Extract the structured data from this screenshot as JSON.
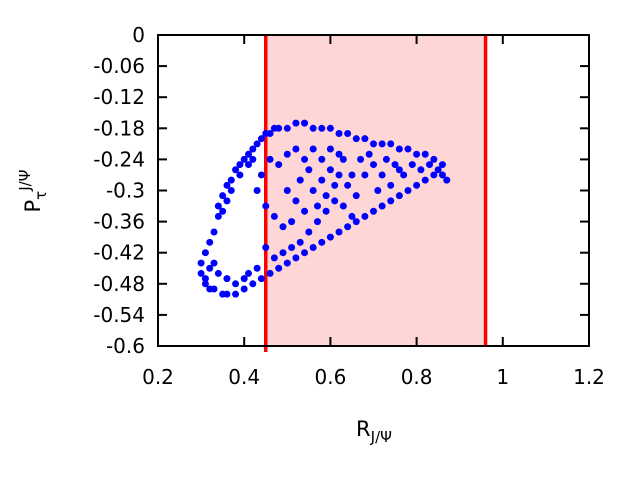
{
  "chart_data": {
    "type": "scatter",
    "title": "",
    "xlabel": {
      "main": "R",
      "sub": "J/Ψ"
    },
    "ylabel": {
      "main": "P",
      "sub": "τ",
      "sup": "J/Ψ"
    },
    "xlim": [
      0.2,
      1.2
    ],
    "ylim": [
      -0.6,
      0
    ],
    "x_ticks": [
      "0.2",
      "0.4",
      "0.6",
      "0.8",
      "1",
      "1.2"
    ],
    "y_ticks": [
      "0",
      "-0.06",
      "-0.12",
      "-0.18",
      "-0.24",
      "-0.3",
      "-0.36",
      "-0.42",
      "-0.48",
      "-0.54",
      "-0.6"
    ],
    "grid": false,
    "band": {
      "x": [
        0.45,
        0.96
      ],
      "fill": "#ffd6d6",
      "edge": "#ff0000"
    },
    "series": [
      {
        "color": "#0000ff",
        "points": [
          [
            0.3,
            -0.44
          ],
          [
            0.3,
            -0.46
          ],
          [
            0.31,
            -0.48
          ],
          [
            0.31,
            -0.42
          ],
          [
            0.32,
            -0.4
          ],
          [
            0.32,
            -0.49
          ],
          [
            0.33,
            -0.38
          ],
          [
            0.33,
            -0.49
          ],
          [
            0.34,
            -0.35
          ],
          [
            0.34,
            -0.33
          ],
          [
            0.35,
            -0.31
          ],
          [
            0.36,
            -0.29
          ],
          [
            0.37,
            -0.28
          ],
          [
            0.38,
            -0.26
          ],
          [
            0.39,
            -0.25
          ],
          [
            0.4,
            -0.24
          ],
          [
            0.41,
            -0.23
          ],
          [
            0.42,
            -0.22
          ],
          [
            0.43,
            -0.21
          ],
          [
            0.44,
            -0.2
          ],
          [
            0.45,
            -0.19
          ],
          [
            0.46,
            -0.19
          ],
          [
            0.47,
            -0.18
          ],
          [
            0.48,
            -0.18
          ],
          [
            0.35,
            -0.5
          ],
          [
            0.36,
            -0.5
          ],
          [
            0.38,
            -0.5
          ],
          [
            0.4,
            -0.49
          ],
          [
            0.42,
            -0.48
          ],
          [
            0.44,
            -0.47
          ],
          [
            0.46,
            -0.46
          ],
          [
            0.48,
            -0.45
          ],
          [
            0.5,
            -0.44
          ],
          [
            0.52,
            -0.43
          ],
          [
            0.54,
            -0.42
          ],
          [
            0.56,
            -0.41
          ],
          [
            0.58,
            -0.4
          ],
          [
            0.6,
            -0.39
          ],
          [
            0.62,
            -0.38
          ],
          [
            0.64,
            -0.37
          ],
          [
            0.66,
            -0.36
          ],
          [
            0.68,
            -0.35
          ],
          [
            0.7,
            -0.34
          ],
          [
            0.72,
            -0.33
          ],
          [
            0.74,
            -0.32
          ],
          [
            0.76,
            -0.31
          ],
          [
            0.78,
            -0.3
          ],
          [
            0.8,
            -0.29
          ],
          [
            0.82,
            -0.28
          ],
          [
            0.84,
            -0.27
          ],
          [
            0.86,
            -0.27
          ],
          [
            0.87,
            -0.28
          ],
          [
            0.86,
            -0.25
          ],
          [
            0.84,
            -0.24
          ],
          [
            0.82,
            -0.23
          ],
          [
            0.8,
            -0.23
          ],
          [
            0.78,
            -0.22
          ],
          [
            0.76,
            -0.22
          ],
          [
            0.74,
            -0.21
          ],
          [
            0.72,
            -0.21
          ],
          [
            0.7,
            -0.21
          ],
          [
            0.68,
            -0.2
          ],
          [
            0.66,
            -0.2
          ],
          [
            0.64,
            -0.19
          ],
          [
            0.62,
            -0.19
          ],
          [
            0.6,
            -0.18
          ],
          [
            0.58,
            -0.18
          ],
          [
            0.56,
            -0.18
          ],
          [
            0.54,
            -0.17
          ],
          [
            0.52,
            -0.17
          ],
          [
            0.5,
            -0.18
          ],
          [
            0.5,
            -0.3
          ],
          [
            0.52,
            -0.32
          ],
          [
            0.54,
            -0.34
          ],
          [
            0.56,
            -0.3
          ],
          [
            0.58,
            -0.28
          ],
          [
            0.6,
            -0.26
          ],
          [
            0.62,
            -0.27
          ],
          [
            0.64,
            -0.29
          ],
          [
            0.66,
            -0.31
          ],
          [
            0.68,
            -0.27
          ],
          [
            0.7,
            -0.25
          ],
          [
            0.72,
            -0.27
          ],
          [
            0.74,
            -0.29
          ],
          [
            0.76,
            -0.26
          ],
          [
            0.55,
            -0.38
          ],
          [
            0.57,
            -0.36
          ],
          [
            0.59,
            -0.34
          ],
          [
            0.61,
            -0.32
          ],
          [
            0.63,
            -0.33
          ],
          [
            0.65,
            -0.35
          ],
          [
            0.53,
            -0.4
          ],
          [
            0.51,
            -0.41
          ],
          [
            0.49,
            -0.42
          ],
          [
            0.47,
            -0.43
          ],
          [
            0.45,
            -0.41
          ],
          [
            0.43,
            -0.45
          ],
          [
            0.41,
            -0.46
          ],
          [
            0.46,
            -0.24
          ],
          [
            0.48,
            -0.25
          ],
          [
            0.5,
            -0.23
          ],
          [
            0.52,
            -0.22
          ],
          [
            0.54,
            -0.24
          ],
          [
            0.56,
            -0.22
          ],
          [
            0.58,
            -0.24
          ],
          [
            0.6,
            -0.22
          ],
          [
            0.62,
            -0.23
          ],
          [
            0.44,
            -0.27
          ],
          [
            0.43,
            -0.3
          ],
          [
            0.45,
            -0.33
          ],
          [
            0.47,
            -0.35
          ],
          [
            0.49,
            -0.37
          ],
          [
            0.51,
            -0.36
          ],
          [
            0.53,
            -0.28
          ],
          [
            0.67,
            -0.24
          ],
          [
            0.69,
            -0.23
          ],
          [
            0.71,
            -0.3
          ],
          [
            0.73,
            -0.24
          ],
          [
            0.75,
            -0.25
          ],
          [
            0.77,
            -0.27
          ],
          [
            0.79,
            -0.25
          ],
          [
            0.81,
            -0.26
          ],
          [
            0.83,
            -0.25
          ],
          [
            0.85,
            -0.26
          ],
          [
            0.65,
            -0.27
          ],
          [
            0.63,
            -0.24
          ],
          [
            0.61,
            -0.29
          ],
          [
            0.59,
            -0.31
          ],
          [
            0.57,
            -0.33
          ],
          [
            0.55,
            -0.26
          ],
          [
            0.4,
            -0.47
          ],
          [
            0.38,
            -0.48
          ],
          [
            0.36,
            -0.47
          ],
          [
            0.34,
            -0.46
          ],
          [
            0.33,
            -0.44
          ],
          [
            0.32,
            -0.45
          ],
          [
            0.31,
            -0.47
          ],
          [
            0.37,
            -0.3
          ],
          [
            0.36,
            -0.32
          ],
          [
            0.35,
            -0.34
          ],
          [
            0.39,
            -0.27
          ],
          [
            0.41,
            -0.25
          ],
          [
            0.42,
            -0.24
          ]
        ]
      }
    ]
  }
}
